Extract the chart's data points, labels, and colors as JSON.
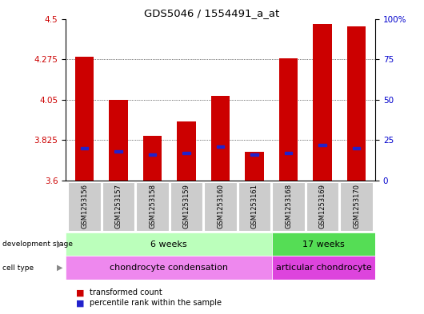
{
  "title": "GDS5046 / 1554491_a_at",
  "samples": [
    "GSM1253156",
    "GSM1253157",
    "GSM1253158",
    "GSM1253159",
    "GSM1253160",
    "GSM1253161",
    "GSM1253168",
    "GSM1253169",
    "GSM1253170"
  ],
  "transformed_count": [
    4.29,
    4.05,
    3.85,
    3.93,
    4.07,
    3.76,
    4.28,
    4.47,
    4.46
  ],
  "percentile_rank": [
    20,
    18,
    16,
    17,
    21,
    16,
    17,
    22,
    20
  ],
  "y_min": 3.6,
  "y_max": 4.5,
  "y_ticks": [
    3.6,
    3.825,
    4.05,
    4.275,
    4.5
  ],
  "right_y_ticks": [
    0,
    25,
    50,
    75,
    100
  ],
  "bar_color": "#cc0000",
  "blue_color": "#2222cc",
  "development_stages": [
    {
      "label": "6 weeks",
      "start": 0,
      "end": 6,
      "color": "#bbffbb"
    },
    {
      "label": "17 weeks",
      "start": 6,
      "end": 9,
      "color": "#55dd55"
    }
  ],
  "cell_types": [
    {
      "label": "chondrocyte condensation",
      "start": 0,
      "end": 6,
      "color": "#ee88ee"
    },
    {
      "label": "articular chondrocyte",
      "start": 6,
      "end": 9,
      "color": "#dd44dd"
    }
  ],
  "legend_items": [
    {
      "color": "#cc0000",
      "label": "transformed count"
    },
    {
      "color": "#2222cc",
      "label": "percentile rank within the sample"
    }
  ],
  "background_color": "#ffffff",
  "ylabel_color": "#cc0000",
  "right_ylabel_color": "#0000cc",
  "sample_bg": "#cccccc"
}
